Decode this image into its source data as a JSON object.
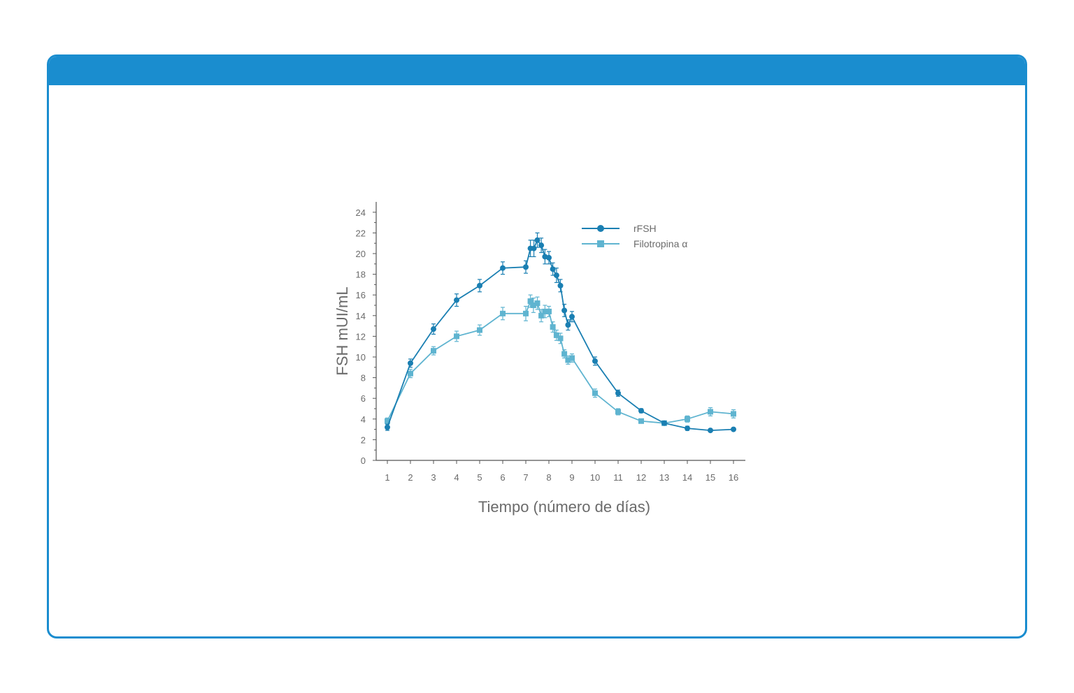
{
  "colors": {
    "accent": "#1a8dcf",
    "rfsh": "#1a7fb2",
    "filotropina": "#5fb4d0",
    "axis": "#555555",
    "text": "#6b6b6b"
  },
  "chart_data": {
    "type": "line",
    "xlabel": "Tiempo (número de días)",
    "ylabel": "FSH mUI/mL",
    "xlim": [
      0.5,
      16.5
    ],
    "ylim": [
      0,
      25
    ],
    "x_ticks": [
      1,
      2,
      3,
      4,
      5,
      6,
      7,
      8,
      9,
      10,
      11,
      12,
      13,
      14,
      15,
      16
    ],
    "y_ticks": [
      0,
      2,
      4,
      6,
      8,
      10,
      12,
      14,
      16,
      18,
      20,
      22,
      24
    ],
    "legend_position": "top-right",
    "series": [
      {
        "name": "rFSH",
        "marker": "circle",
        "color": "#1a7fb2",
        "points": [
          {
            "x": 1,
            "y": 3.2,
            "err": 0.3
          },
          {
            "x": 2,
            "y": 9.4,
            "err": 0.4
          },
          {
            "x": 3,
            "y": 12.7,
            "err": 0.5
          },
          {
            "x": 4,
            "y": 15.5,
            "err": 0.6
          },
          {
            "x": 5,
            "y": 16.9,
            "err": 0.6
          },
          {
            "x": 6,
            "y": 18.6,
            "err": 0.6
          },
          {
            "x": 7,
            "y": 18.7,
            "err": 0.6
          },
          {
            "x": 7.2,
            "y": 20.5,
            "err": 0.8
          },
          {
            "x": 7.35,
            "y": 20.5,
            "err": 0.8
          },
          {
            "x": 7.5,
            "y": 21.3,
            "err": 0.7
          },
          {
            "x": 7.67,
            "y": 20.8,
            "err": 0.7
          },
          {
            "x": 7.83,
            "y": 19.7,
            "err": 0.7
          },
          {
            "x": 8,
            "y": 19.6,
            "err": 0.6
          },
          {
            "x": 8.17,
            "y": 18.5,
            "err": 0.6
          },
          {
            "x": 8.33,
            "y": 17.9,
            "err": 0.7
          },
          {
            "x": 8.5,
            "y": 16.9,
            "err": 0.6
          },
          {
            "x": 8.67,
            "y": 14.5,
            "err": 0.6
          },
          {
            "x": 8.83,
            "y": 13.1,
            "err": 0.5
          },
          {
            "x": 9,
            "y": 13.9,
            "err": 0.5
          },
          {
            "x": 10,
            "y": 9.6,
            "err": 0.4
          },
          {
            "x": 11,
            "y": 6.5,
            "err": 0.3
          },
          {
            "x": 12,
            "y": 4.8,
            "err": 0.2
          },
          {
            "x": 13,
            "y": 3.6,
            "err": 0.2
          },
          {
            "x": 14,
            "y": 3.1,
            "err": 0.2
          },
          {
            "x": 15,
            "y": 2.9,
            "err": 0.1
          },
          {
            "x": 16,
            "y": 3.0,
            "err": 0.1
          }
        ]
      },
      {
        "name": "Filotropina α",
        "marker": "square",
        "color": "#5fb4d0",
        "points": [
          {
            "x": 1,
            "y": 3.8,
            "err": 0.3
          },
          {
            "x": 2,
            "y": 8.4,
            "err": 0.4
          },
          {
            "x": 3,
            "y": 10.6,
            "err": 0.4
          },
          {
            "x": 4,
            "y": 12.0,
            "err": 0.5
          },
          {
            "x": 5,
            "y": 12.6,
            "err": 0.5
          },
          {
            "x": 6,
            "y": 14.2,
            "err": 0.6
          },
          {
            "x": 7,
            "y": 14.2,
            "err": 0.7
          },
          {
            "x": 7.2,
            "y": 15.4,
            "err": 0.6
          },
          {
            "x": 7.33,
            "y": 15.0,
            "err": 0.7
          },
          {
            "x": 7.5,
            "y": 15.2,
            "err": 0.6
          },
          {
            "x": 7.67,
            "y": 14.0,
            "err": 0.6
          },
          {
            "x": 7.83,
            "y": 14.4,
            "err": 0.6
          },
          {
            "x": 8,
            "y": 14.4,
            "err": 0.5
          },
          {
            "x": 8.17,
            "y": 12.9,
            "err": 0.5
          },
          {
            "x": 8.33,
            "y": 12.1,
            "err": 0.5
          },
          {
            "x": 8.5,
            "y": 11.8,
            "err": 0.5
          },
          {
            "x": 8.67,
            "y": 10.3,
            "err": 0.4
          },
          {
            "x": 8.83,
            "y": 9.7,
            "err": 0.4
          },
          {
            "x": 9,
            "y": 9.9,
            "err": 0.4
          },
          {
            "x": 10,
            "y": 6.5,
            "err": 0.4
          },
          {
            "x": 11,
            "y": 4.7,
            "err": 0.3
          },
          {
            "x": 12,
            "y": 3.8,
            "err": 0.2
          },
          {
            "x": 13,
            "y": 3.6,
            "err": 0.2
          },
          {
            "x": 14,
            "y": 4.0,
            "err": 0.3
          },
          {
            "x": 15,
            "y": 4.7,
            "err": 0.4
          },
          {
            "x": 16,
            "y": 4.5,
            "err": 0.4
          }
        ]
      }
    ]
  }
}
